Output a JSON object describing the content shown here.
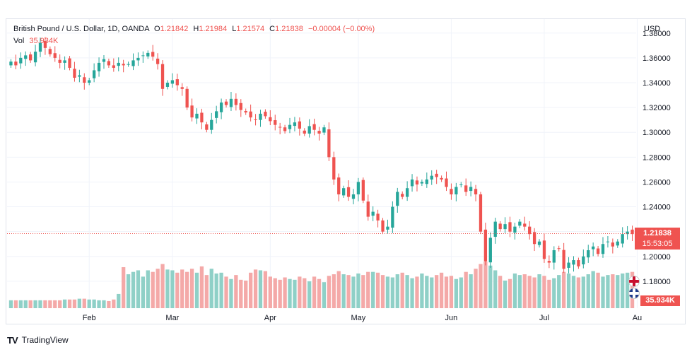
{
  "legend": {
    "symbol": "British Pound / U.S. Dollar, 1D, OANDA",
    "open_key": "O",
    "open": "1.21842",
    "high_key": "H",
    "high": "1.21984",
    "low_key": "L",
    "low": "1.21574",
    "close_key": "C",
    "close": "1.21838",
    "change": "−0.00004 (−0.00%)",
    "vol_key": "Vol",
    "vol": "35.934K"
  },
  "price_axis": {
    "currency": "USD",
    "last_price": "1.21838",
    "countdown": "15:53:05",
    "volume_value": "35.934K"
  },
  "footer": {
    "brand": "TradingView",
    "logo": "TV"
  },
  "colors": {
    "up": "#26a69a",
    "down": "#ef5350",
    "up_vol": "#8fd0c7",
    "down_vol": "#f4a9a8",
    "grid": "#f0f3fa"
  },
  "chart_data": {
    "type": "candlestick",
    "title": "British Pound / U.S. Dollar, 1D, OANDA",
    "ylim": [
      1.16,
      1.385
    ],
    "y_ticks": [
      "1.38000",
      "1.36000",
      "1.34000",
      "1.32000",
      "1.30000",
      "1.28000",
      "1.26000",
      "1.24000",
      "1.22000",
      "1.20000",
      "1.18000"
    ],
    "y_tick_values": [
      1.38,
      1.36,
      1.34,
      1.32,
      1.3,
      1.28,
      1.26,
      1.24,
      1.22,
      1.2,
      1.18
    ],
    "x_labels": [
      {
        "label": "Feb",
        "index": 16
      },
      {
        "label": "Mar",
        "index": 33
      },
      {
        "label": "Apr",
        "index": 53
      },
      {
        "label": "May",
        "index": 71
      },
      {
        "label": "Jun",
        "index": 90
      },
      {
        "label": "Jul",
        "index": 109
      },
      {
        "label": "Au",
        "index": 128
      }
    ],
    "last_price": 1.21838,
    "close": [
      1.357,
      1.354,
      1.36,
      1.362,
      1.358,
      1.365,
      1.372,
      1.368,
      1.363,
      1.36,
      1.356,
      1.358,
      1.352,
      1.344,
      1.346,
      1.34,
      1.342,
      1.35,
      1.356,
      1.359,
      1.354,
      1.352,
      1.356,
      1.354,
      1.355,
      1.358,
      1.36,
      1.362,
      1.364,
      1.361,
      1.355,
      1.335,
      1.34,
      1.342,
      1.338,
      1.335,
      1.32,
      1.312,
      1.315,
      1.308,
      1.302,
      1.31,
      1.317,
      1.324,
      1.322,
      1.327,
      1.322,
      1.318,
      1.316,
      1.312,
      1.31,
      1.315,
      1.313,
      1.309,
      1.306,
      1.304,
      1.301,
      1.306,
      1.308,
      1.303,
      1.299,
      1.305,
      1.302,
      1.299,
      1.304,
      1.28,
      1.262,
      1.25,
      1.255,
      1.248,
      1.25,
      1.26,
      1.245,
      1.232,
      1.236,
      1.229,
      1.22,
      1.224,
      1.24,
      1.252,
      1.248,
      1.255,
      1.262,
      1.258,
      1.26,
      1.262,
      1.265,
      1.264,
      1.262,
      1.256,
      1.25,
      1.256,
      1.258,
      1.252,
      1.256,
      1.25,
      1.22,
      1.196,
      1.215,
      1.228,
      1.222,
      1.226,
      1.22,
      1.224,
      1.228,
      1.224,
      1.218,
      1.21,
      1.212,
      1.198,
      1.195,
      1.205,
      1.206,
      1.19,
      1.195,
      1.197,
      1.192,
      1.2,
      1.205,
      1.208,
      1.202,
      1.21,
      1.212,
      1.208,
      1.212,
      1.218,
      1.22,
      1.218
    ],
    "volume": [
      1.0,
      1.0,
      1.0,
      1.0,
      1.0,
      1.0,
      1.0,
      1.0,
      1.0,
      1.0,
      1.0,
      1.1,
      1.1,
      1.1,
      1.2,
      1.2,
      1.1,
      1.1,
      1.0,
      1.0,
      0.9,
      1.1,
      1.8,
      5.2,
      4.3,
      4.6,
      4.8,
      4.0,
      4.8,
      4.6,
      5.0,
      5.6,
      4.9,
      4.8,
      4.5,
      4.9,
      4.6,
      5.0,
      4.5,
      5.3,
      4.2,
      5.0,
      4.4,
      4.5,
      4.0,
      3.7,
      4.2,
      3.6,
      3.5,
      4.5,
      4.9,
      4.8,
      4.7,
      4.0,
      3.8,
      3.6,
      3.9,
      3.7,
      3.6,
      4.0,
      3.8,
      3.4,
      4.0,
      3.7,
      3.3,
      4.1,
      4.3,
      4.7,
      4.3,
      4.2,
      4.0,
      4.4,
      4.2,
      4.6,
      4.6,
      4.5,
      4.2,
      4.0,
      3.9,
      4.3,
      4.5,
      4.2,
      3.8,
      4.0,
      4.4,
      4.1,
      3.9,
      4.2,
      4.5,
      4.0,
      4.1,
      3.7,
      3.9,
      4.6,
      4.3,
      5.0,
      5.6,
      5.9,
      5.4,
      4.8,
      4.1,
      3.5,
      3.7,
      4.4,
      4.2,
      4.3,
      4.1,
      3.9,
      4.3,
      4.1,
      3.6,
      3.8,
      4.2,
      4.6,
      4.4,
      4.1,
      3.9,
      4.0,
      4.3,
      4.7,
      4.5,
      4.0,
      4.2,
      4.3,
      4.2,
      4.4,
      4.5,
      4.6
    ]
  }
}
